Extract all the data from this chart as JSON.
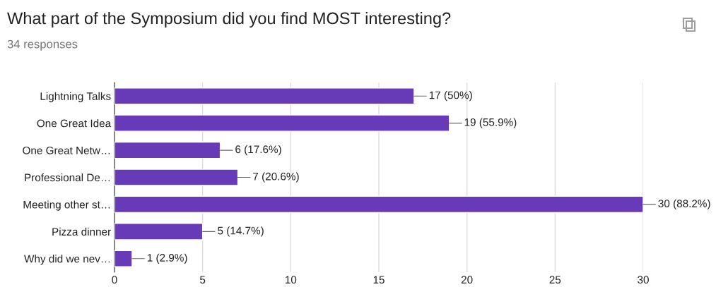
{
  "chart_data": {
    "type": "bar",
    "orientation": "horizontal",
    "title": "What part of the Symposium did you find MOST interesting?",
    "subtitle": "34 responses",
    "categories": [
      "Lightning Talks",
      "One Great Idea",
      "One Great Netw…",
      "Professional De…",
      "Meeting other st…",
      "Pizza dinner",
      "Why did we nev…"
    ],
    "values": [
      17,
      19,
      6,
      7,
      30,
      5,
      1
    ],
    "color": "#673ab7",
    "value_labels": [
      "17 (50%)",
      "19 (55.9%)",
      "6 (17.6%)",
      "7 (20.6%)",
      "30 (88.2%)",
      "5 (14.7%)",
      "1 (2.9%)"
    ],
    "xlim": [
      0,
      30
    ],
    "xticks": [
      0,
      5,
      10,
      15,
      20,
      25,
      30
    ],
    "grid": "x"
  }
}
